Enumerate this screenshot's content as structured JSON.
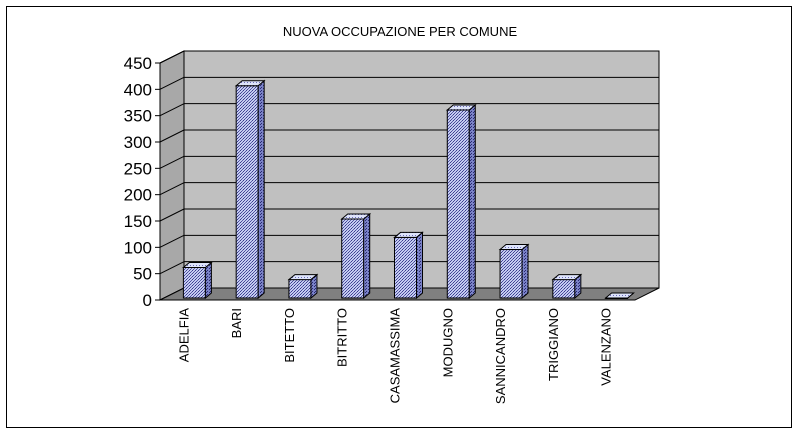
{
  "chart_data": {
    "type": "bar",
    "title": "NUOVA OCCUPAZIONE PER COMUNE",
    "xlabel": "",
    "ylabel": "",
    "categories": [
      "ADELFIA",
      "BARI",
      "BITETTO",
      "BITRITTO",
      "CASAMASSIMA",
      "MODUGNO",
      "SANNICANDRO",
      "TRIGGIANO",
      "VALENZANO"
    ],
    "values": [
      58,
      403,
      35,
      150,
      115,
      357,
      92,
      35,
      0
    ],
    "yticks": [
      0,
      50,
      100,
      150,
      200,
      250,
      300,
      350,
      400,
      450
    ],
    "ylim": [
      0,
      450
    ],
    "grid": true,
    "legend": "none",
    "colors": {
      "plot_wall": "#c0c0c0",
      "floor": "#808080",
      "bar_front": "#b8c4ec",
      "bar_pattern": "#3a3a8c",
      "bar_top": "#d4dcf8",
      "bar_side": "#5a62b4"
    }
  }
}
